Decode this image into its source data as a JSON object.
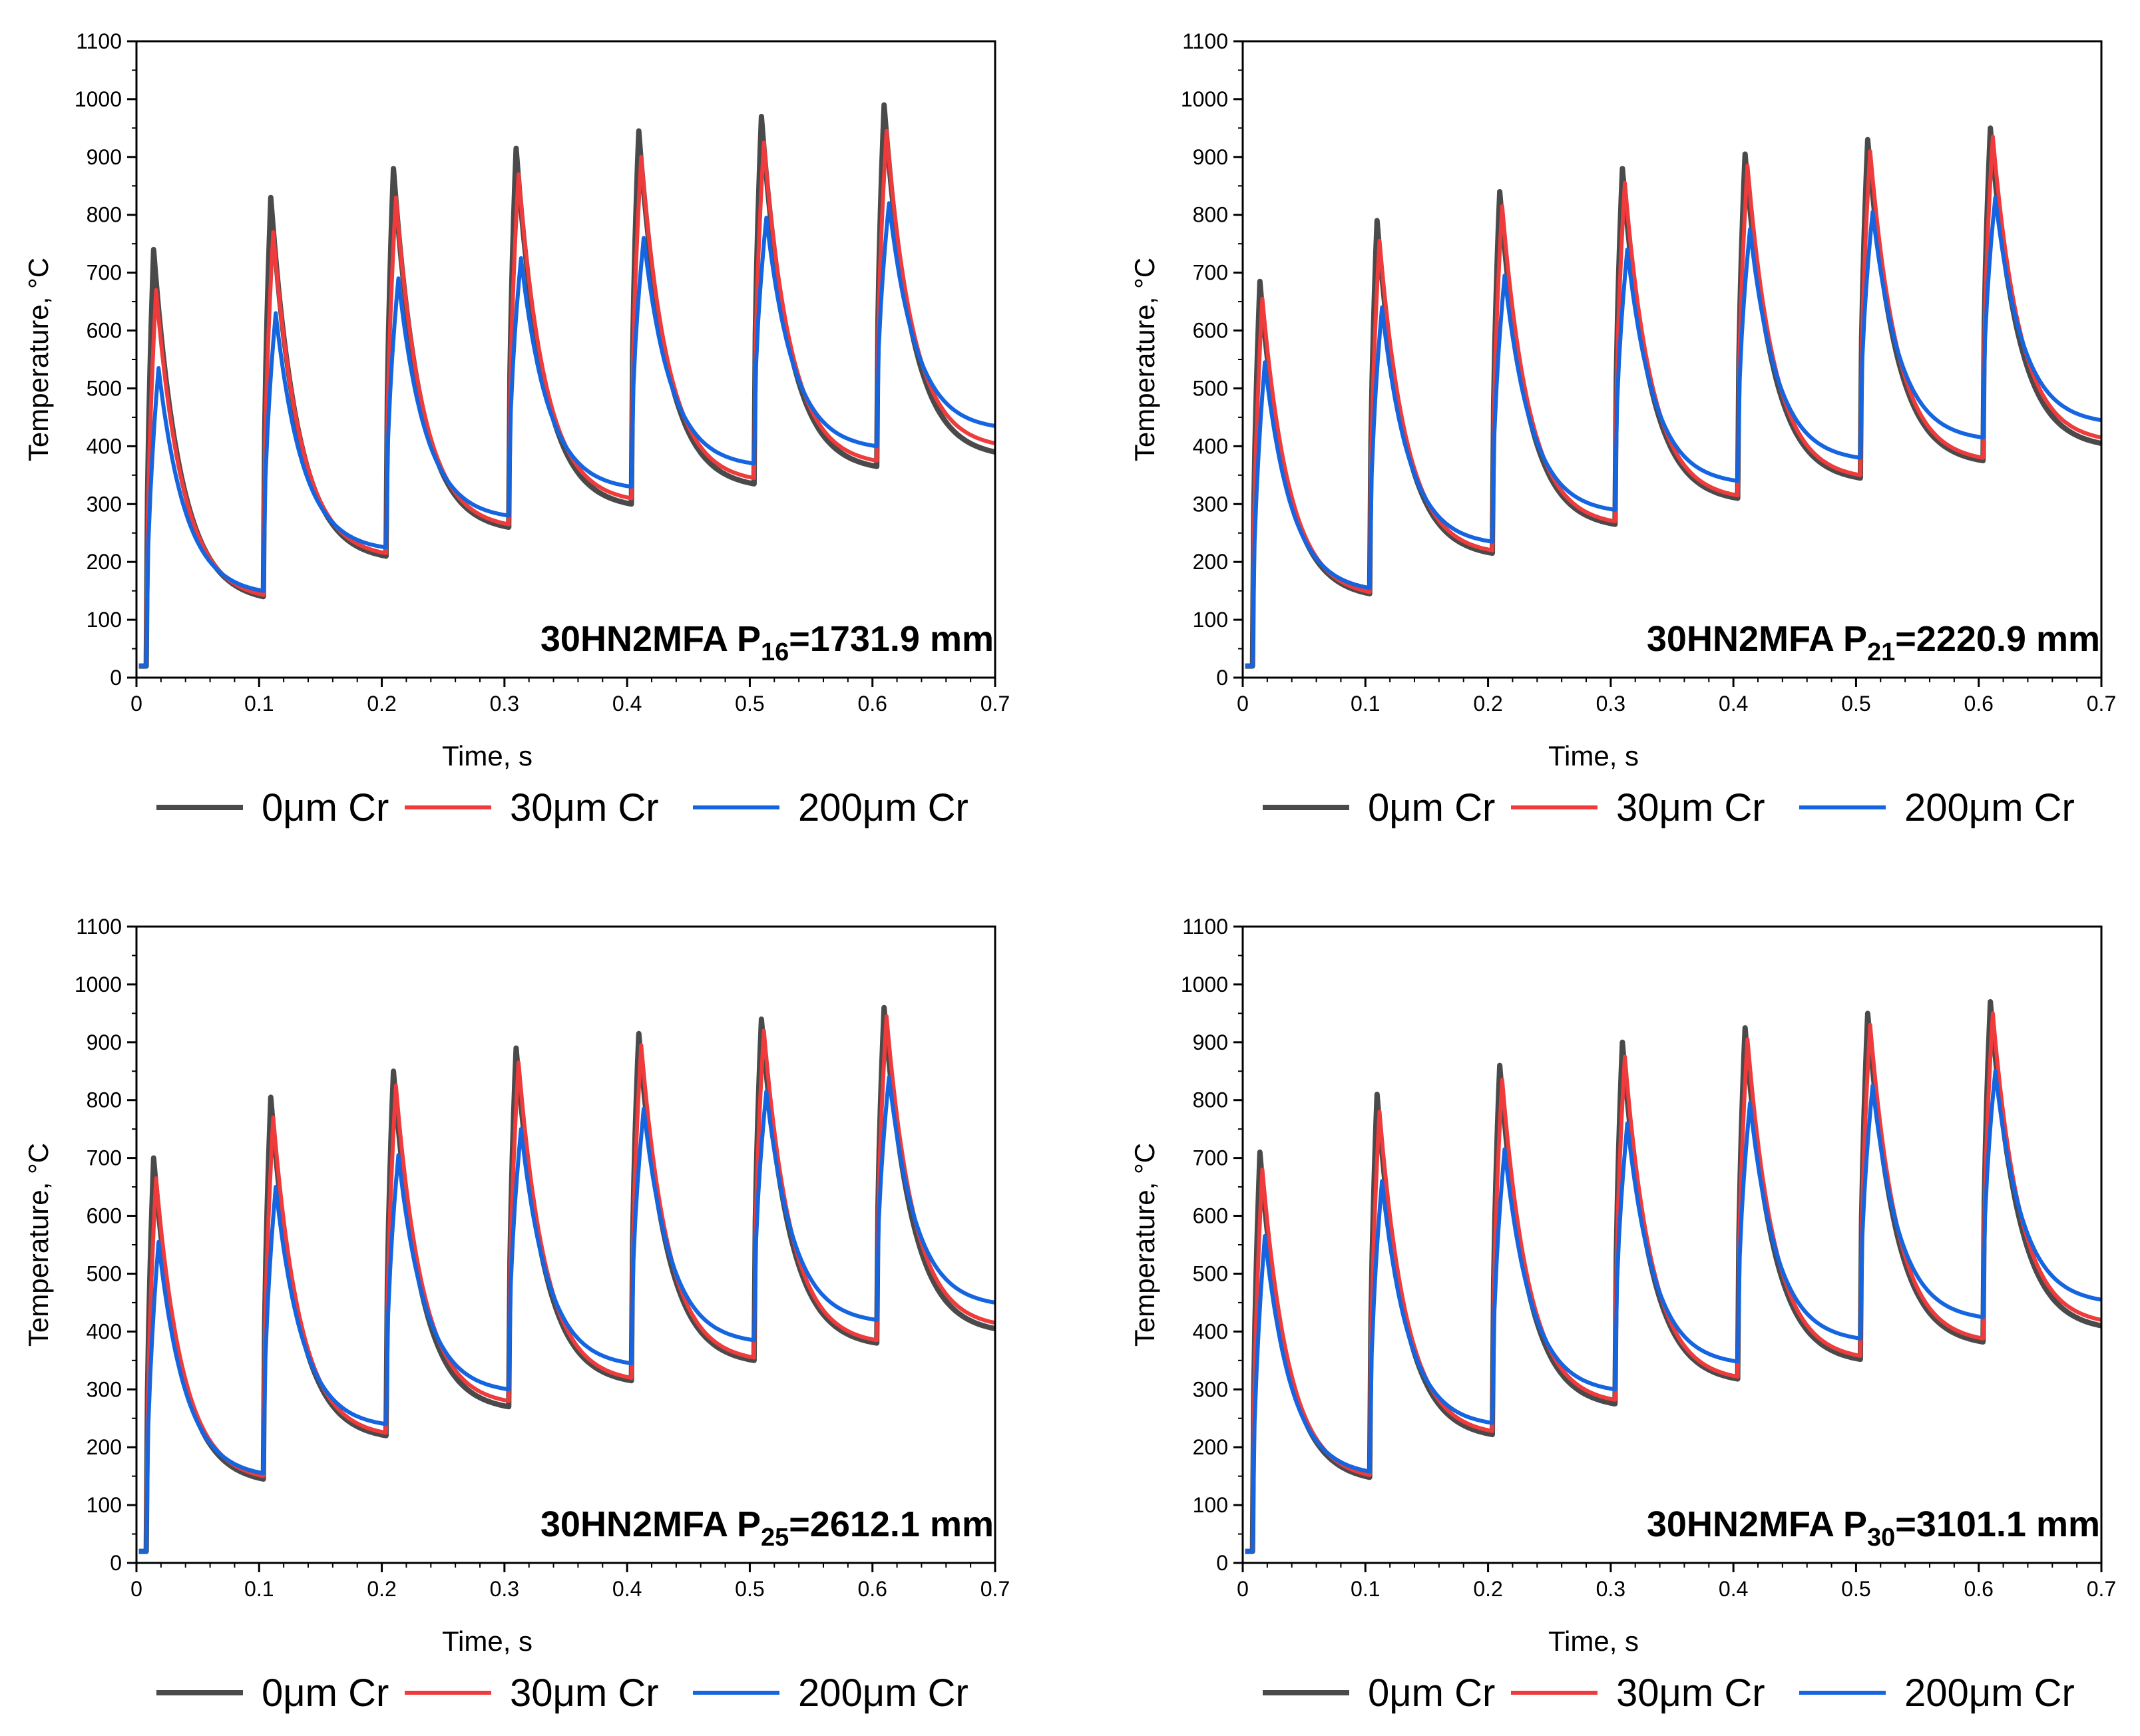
{
  "chart_data": [
    {
      "type": "line",
      "title": "",
      "annotation": {
        "text": "30HN2MFA P",
        "subscript": "16",
        "suffix": "=1731.9 mm"
      },
      "xlabel": "Time, s",
      "ylabel": "Temperature, °C",
      "xlim": [
        0,
        0.7
      ],
      "ylim": [
        0,
        1100
      ],
      "xticks": [
        "0",
        "0.1",
        "0.2",
        "0.3",
        "0.4",
        "0.5",
        "0.6",
        "0.7"
      ],
      "yticks": [
        "0",
        "100",
        "200",
        "300",
        "400",
        "500",
        "600",
        "700",
        "800",
        "900",
        "1000",
        "1100"
      ],
      "legend": [
        {
          "label": "0μm Cr",
          "color": "#4a4a4a"
        },
        {
          "label": "30μm Cr",
          "color": "#ef3b3b"
        },
        {
          "label": "200μm Cr",
          "color": "#1565e0"
        }
      ],
      "series": [
        {
          "name": "0μm Cr",
          "color": "#4a4a4a",
          "peaks": [
            740,
            830,
            880,
            915,
            945,
            970,
            990
          ],
          "valleys": [
            140,
            210,
            260,
            300,
            335,
            365
          ],
          "end": 390
        },
        {
          "name": "30μm Cr",
          "color": "#ef3b3b",
          "peaks": [
            670,
            770,
            830,
            870,
            900,
            925,
            945
          ],
          "valleys": [
            143,
            215,
            265,
            310,
            345,
            375
          ],
          "end": 405
        },
        {
          "name": "200μm Cr",
          "color": "#1565e0",
          "peaks": [
            535,
            630,
            690,
            725,
            760,
            795,
            820
          ],
          "valleys": [
            150,
            225,
            280,
            330,
            370,
            400
          ],
          "end": 435
        }
      ]
    },
    {
      "type": "line",
      "title": "",
      "annotation": {
        "text": "30HN2MFA P",
        "subscript": "21",
        "suffix": "=2220.9 mm"
      },
      "xlabel": "Time, s",
      "ylabel": "Temperature, °C",
      "xlim": [
        0,
        0.7
      ],
      "ylim": [
        0,
        1100
      ],
      "xticks": [
        "0",
        "0.1",
        "0.2",
        "0.3",
        "0.4",
        "0.5",
        "0.6",
        "0.7"
      ],
      "yticks": [
        "0",
        "100",
        "200",
        "300",
        "400",
        "500",
        "600",
        "700",
        "800",
        "900",
        "1000",
        "1100"
      ],
      "legend": [
        {
          "label": "0μm Cr",
          "color": "#4a4a4a"
        },
        {
          "label": "30μm Cr",
          "color": "#ef3b3b"
        },
        {
          "label": "200μm Cr",
          "color": "#1565e0"
        }
      ],
      "series": [
        {
          "name": "0μm Cr",
          "color": "#4a4a4a",
          "peaks": [
            685,
            790,
            840,
            880,
            905,
            930,
            950
          ],
          "valleys": [
            145,
            215,
            265,
            310,
            345,
            375
          ],
          "end": 405
        },
        {
          "name": "30μm Cr",
          "color": "#ef3b3b",
          "peaks": [
            655,
            755,
            815,
            855,
            885,
            910,
            935
          ],
          "valleys": [
            148,
            220,
            270,
            315,
            350,
            380
          ],
          "end": 415
        },
        {
          "name": "200μm Cr",
          "color": "#1565e0",
          "peaks": [
            545,
            640,
            695,
            740,
            775,
            805,
            830
          ],
          "valleys": [
            155,
            235,
            290,
            340,
            380,
            415
          ],
          "end": 445
        }
      ]
    },
    {
      "type": "line",
      "title": "",
      "annotation": {
        "text": "30HN2MFA P",
        "subscript": "25",
        "suffix": "=2612.1 mm"
      },
      "xlabel": "Time, s",
      "ylabel": "Temperature, °C",
      "xlim": [
        0,
        0.7
      ],
      "ylim": [
        0,
        1100
      ],
      "xticks": [
        "0",
        "0.1",
        "0.2",
        "0.3",
        "0.4",
        "0.5",
        "0.6",
        "0.7"
      ],
      "yticks": [
        "0",
        "100",
        "200",
        "300",
        "400",
        "500",
        "600",
        "700",
        "800",
        "900",
        "1000",
        "1100"
      ],
      "legend": [
        {
          "label": "0μm Cr",
          "color": "#4a4a4a"
        },
        {
          "label": "30μm Cr",
          "color": "#ef3b3b"
        },
        {
          "label": "200μm Cr",
          "color": "#1565e0"
        }
      ],
      "series": [
        {
          "name": "0μm Cr",
          "color": "#4a4a4a",
          "peaks": [
            700,
            805,
            850,
            890,
            915,
            940,
            960
          ],
          "valleys": [
            145,
            220,
            270,
            315,
            350,
            380
          ],
          "end": 405
        },
        {
          "name": "30μm Cr",
          "color": "#ef3b3b",
          "peaks": [
            665,
            770,
            825,
            865,
            895,
            920,
            945
          ],
          "valleys": [
            150,
            225,
            280,
            320,
            355,
            385
          ],
          "end": 415
        },
        {
          "name": "200μm Cr",
          "color": "#1565e0",
          "peaks": [
            555,
            650,
            705,
            750,
            785,
            815,
            840
          ],
          "valleys": [
            155,
            240,
            300,
            345,
            385,
            420
          ],
          "end": 450
        }
      ]
    },
    {
      "type": "line",
      "title": "",
      "annotation": {
        "text": "30HN2MFA P",
        "subscript": "30",
        "suffix": "=3101.1 mm"
      },
      "xlabel": "Time, s",
      "ylabel": "Temperature, °C",
      "xlim": [
        0,
        0.7
      ],
      "ylim": [
        0,
        1100
      ],
      "xticks": [
        "0",
        "0.1",
        "0.2",
        "0.3",
        "0.4",
        "0.5",
        "0.6",
        "0.7"
      ],
      "yticks": [
        "0",
        "100",
        "200",
        "300",
        "400",
        "500",
        "600",
        "700",
        "800",
        "900",
        "1000",
        "1100"
      ],
      "legend": [
        {
          "label": "0μm Cr",
          "color": "#4a4a4a"
        },
        {
          "label": "30μm Cr",
          "color": "#ef3b3b"
        },
        {
          "label": "200μm Cr",
          "color": "#1565e0"
        }
      ],
      "series": [
        {
          "name": "0μm Cr",
          "color": "#4a4a4a",
          "peaks": [
            710,
            810,
            860,
            900,
            925,
            950,
            970
          ],
          "valleys": [
            148,
            222,
            275,
            318,
            352,
            382
          ],
          "end": 410
        },
        {
          "name": "30μm Cr",
          "color": "#ef3b3b",
          "peaks": [
            680,
            780,
            835,
            875,
            905,
            930,
            950
          ],
          "valleys": [
            152,
            228,
            282,
            322,
            358,
            388
          ],
          "end": 420
        },
        {
          "name": "200μm Cr",
          "color": "#1565e0",
          "peaks": [
            565,
            660,
            715,
            760,
            795,
            825,
            850
          ],
          "valleys": [
            158,
            242,
            300,
            348,
            388,
            425
          ],
          "end": 455
        }
      ]
    }
  ]
}
